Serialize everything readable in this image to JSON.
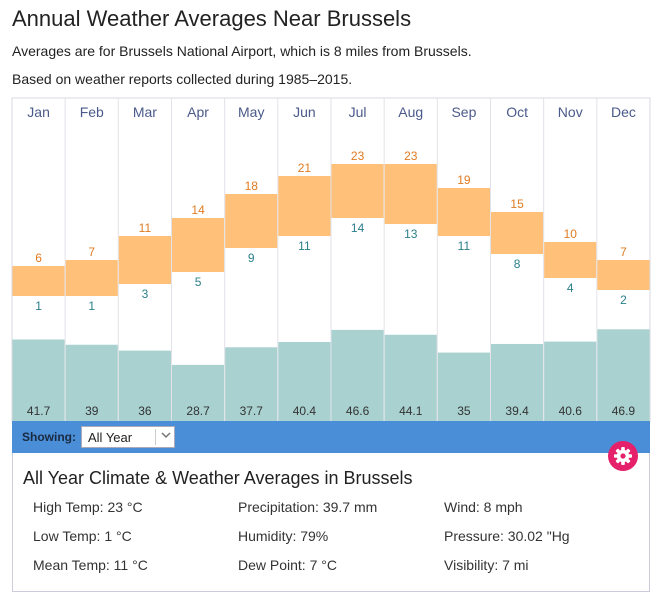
{
  "header": {
    "title": "Annual Weather Averages Near Brussels",
    "subtitle1": "Averages are for Brussels National Airport, which is 8 miles from Brussels.",
    "subtitle2": "Based on weather reports collected during 1985–2015."
  },
  "chart_data": {
    "type": "bar",
    "categories": [
      "Jan",
      "Feb",
      "Mar",
      "Apr",
      "May",
      "Jun",
      "Jul",
      "Aug",
      "Sep",
      "Oct",
      "Nov",
      "Dec"
    ],
    "series": [
      {
        "values": [
          6,
          7,
          11,
          14,
          18,
          21,
          23,
          23,
          19,
          15,
          10,
          7
        ]
      },
      {
        "values": [
          1,
          1,
          3,
          5,
          9,
          11,
          14,
          13,
          11,
          8,
          4,
          2
        ]
      },
      {
        "values": [
          41.7,
          39,
          36,
          28.7,
          37.7,
          40.4,
          46.6,
          44.1,
          35,
          39.4,
          40.6,
          46.9
        ]
      }
    ],
    "colors": {
      "temp_bar": "#ffc07a",
      "precip_bar": "#a8d1d0",
      "high_text": "#e07b22",
      "low_text": "#2a7f8a"
    }
  },
  "controls": {
    "showing_label": "Showing:",
    "selected_option": "All Year"
  },
  "summary": {
    "title": "All Year Climate & Weather Averages in Brussels",
    "col1": [
      "High Temp: 23 °C",
      "Low Temp: 1 °C",
      "Mean Temp: 11 °C"
    ],
    "col2": [
      "Precipitation: 39.7 mm",
      "Humidity: 79%",
      "Dew Point: 7 °C"
    ],
    "col3": [
      "Wind: 8 mph",
      "Pressure: 30.02 \"Hg",
      "Visibility: 7 mi"
    ]
  },
  "icons": {
    "settings": "gear-icon",
    "dropdown": "chevron-down-icon"
  },
  "accent_colors": {
    "control_bar": "#4a8ed8",
    "gear_button": "#e5216b"
  }
}
